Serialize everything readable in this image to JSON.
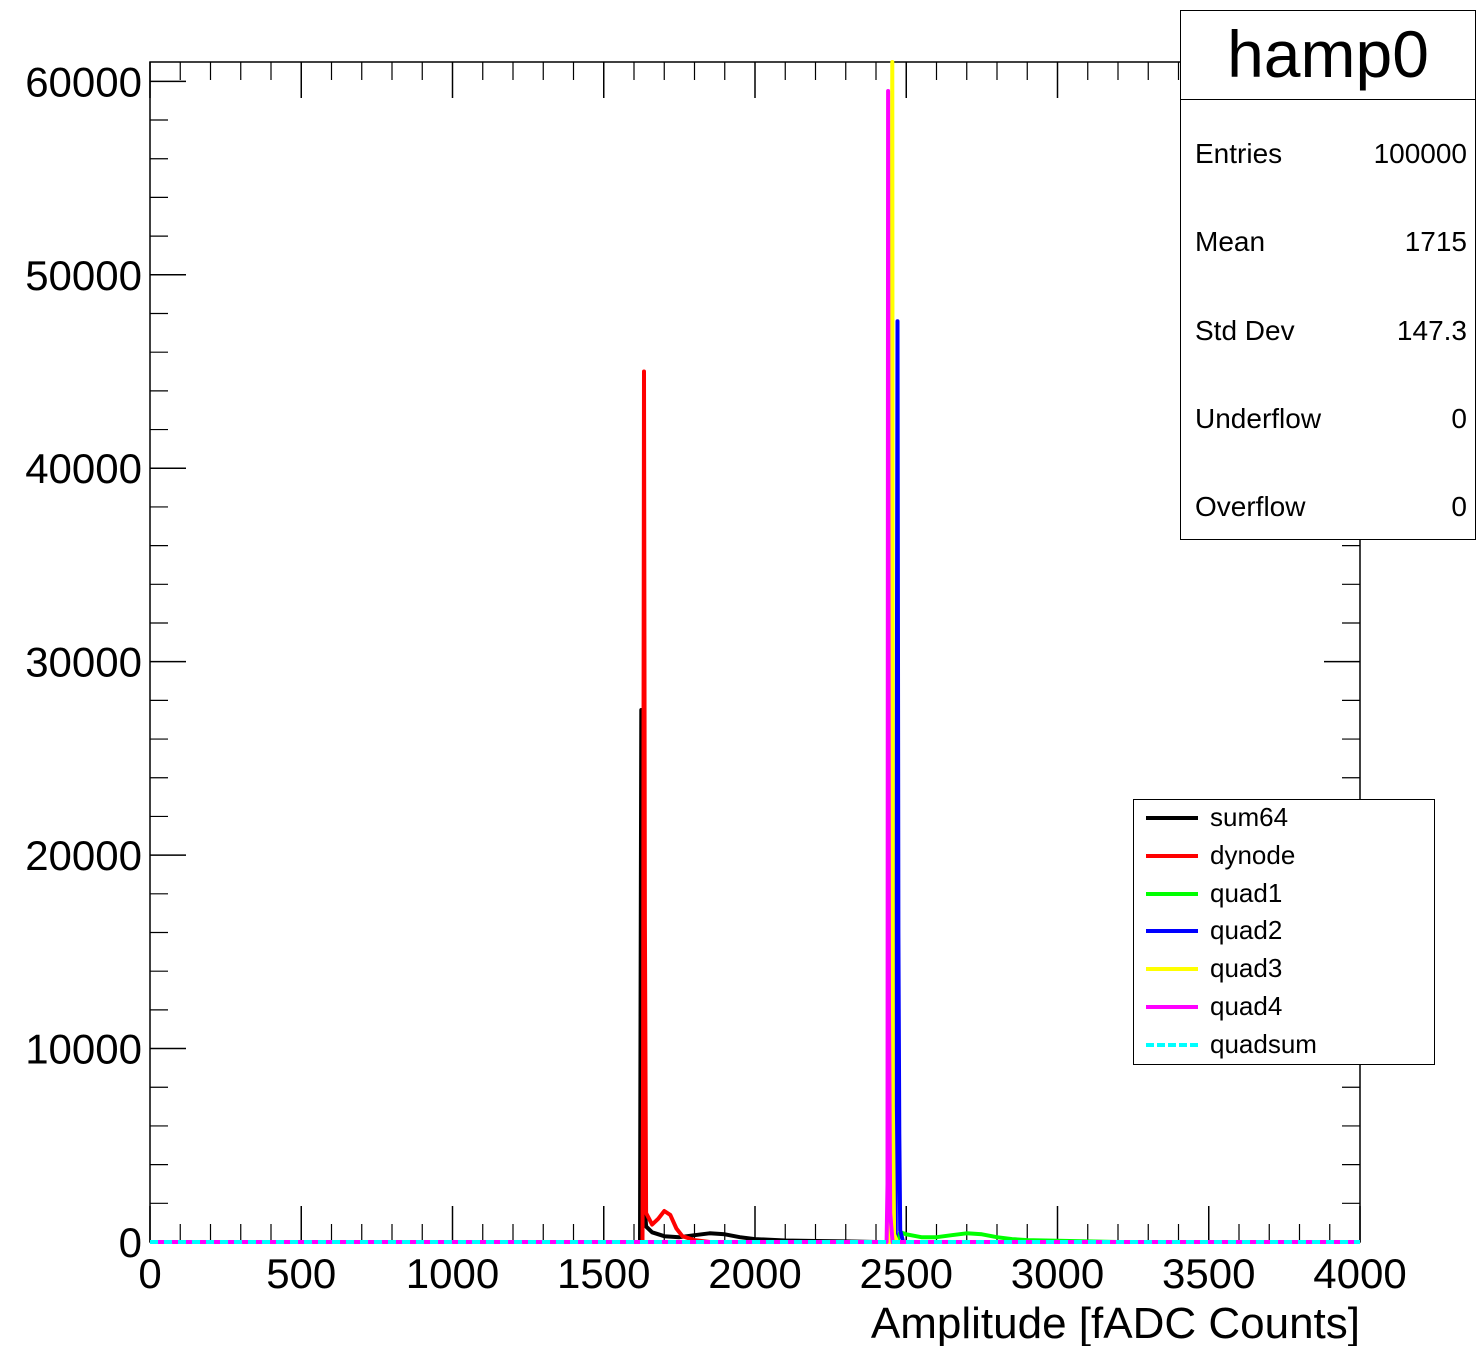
{
  "chart_data": {
    "type": "line",
    "title": "",
    "xlabel": "Amplitude [fADC Counts]",
    "ylabel": "",
    "xlim": [
      0,
      4000
    ],
    "ylim": [
      0,
      61000
    ],
    "x_ticks": [
      "0",
      "500",
      "1000",
      "1500",
      "2000",
      "2500",
      "3000",
      "3500",
      "4000"
    ],
    "y_ticks": [
      "0",
      "10000",
      "20000",
      "30000",
      "40000",
      "50000",
      "60000"
    ],
    "series": [
      {
        "name": "sum64",
        "color": "#000000",
        "dashed": false,
        "points": [
          [
            0,
            0
          ],
          [
            1620,
            0
          ],
          [
            1622,
            15000
          ],
          [
            1624,
            27500
          ],
          [
            1626,
            12000
          ],
          [
            1630,
            3000
          ],
          [
            1640,
            800
          ],
          [
            1660,
            500
          ],
          [
            1700,
            300
          ],
          [
            1750,
            250
          ],
          [
            1800,
            350
          ],
          [
            1850,
            450
          ],
          [
            1900,
            400
          ],
          [
            1950,
            250
          ],
          [
            2000,
            150
          ],
          [
            2100,
            80
          ],
          [
            2200,
            50
          ],
          [
            2300,
            30
          ],
          [
            2400,
            0
          ],
          [
            4000,
            0
          ]
        ]
      },
      {
        "name": "dynode",
        "color": "#ff0000",
        "dashed": false,
        "points": [
          [
            0,
            0
          ],
          [
            1628,
            0
          ],
          [
            1630,
            10000
          ],
          [
            1633,
            45000
          ],
          [
            1636,
            16500
          ],
          [
            1640,
            1500
          ],
          [
            1660,
            900
          ],
          [
            1680,
            1200
          ],
          [
            1700,
            1600
          ],
          [
            1720,
            1400
          ],
          [
            1740,
            700
          ],
          [
            1760,
            300
          ],
          [
            1800,
            100
          ],
          [
            1850,
            0
          ],
          [
            4000,
            0
          ]
        ]
      },
      {
        "name": "quad1",
        "color": "#00ff00",
        "dashed": false,
        "points": [
          [
            0,
            0
          ],
          [
            2470,
            0
          ],
          [
            2480,
            500
          ],
          [
            2500,
            400
          ],
          [
            2550,
            250
          ],
          [
            2600,
            250
          ],
          [
            2650,
            350
          ],
          [
            2700,
            450
          ],
          [
            2750,
            400
          ],
          [
            2800,
            250
          ],
          [
            2850,
            150
          ],
          [
            2900,
            100
          ],
          [
            3000,
            60
          ],
          [
            3100,
            30
          ],
          [
            3200,
            0
          ],
          [
            4000,
            0
          ]
        ]
      },
      {
        "name": "quad2",
        "color": "#0000ff",
        "dashed": false,
        "points": [
          [
            0,
            0
          ],
          [
            2465,
            0
          ],
          [
            2468,
            20000
          ],
          [
            2471,
            47600
          ],
          [
            2474,
            16000
          ],
          [
            2477,
            5600
          ],
          [
            2480,
            600
          ],
          [
            2490,
            0
          ],
          [
            4000,
            0
          ]
        ]
      },
      {
        "name": "quad3",
        "color": "#ffff00",
        "dashed": false,
        "points": [
          [
            0,
            0
          ],
          [
            2448,
            0
          ],
          [
            2450,
            20000
          ],
          [
            2452,
            48000
          ],
          [
            2454,
            61000
          ],
          [
            2456,
            7000
          ],
          [
            2460,
            400
          ],
          [
            2470,
            0
          ],
          [
            4000,
            0
          ]
        ]
      },
      {
        "name": "quad4",
        "color": "#ff00ff",
        "dashed": false,
        "points": [
          [
            0,
            0
          ],
          [
            2435,
            0
          ],
          [
            2438,
            3000
          ],
          [
            2440,
            59500
          ],
          [
            2443,
            12000
          ],
          [
            2447,
            1500
          ],
          [
            2455,
            0
          ],
          [
            4000,
            0
          ]
        ]
      },
      {
        "name": "quadsum",
        "color": "#00ffff",
        "dashed": true,
        "points": [
          [
            0,
            0
          ],
          [
            4000,
            0
          ]
        ]
      }
    ]
  },
  "stats": {
    "title": "hamp0",
    "rows": [
      {
        "key": "Entries",
        "value": "100000"
      },
      {
        "key": "Mean",
        "value": "1715"
      },
      {
        "key": "Std Dev",
        "value": "147.3"
      },
      {
        "key": "Underflow",
        "value": "0"
      },
      {
        "key": "Overflow",
        "value": "0"
      }
    ]
  }
}
